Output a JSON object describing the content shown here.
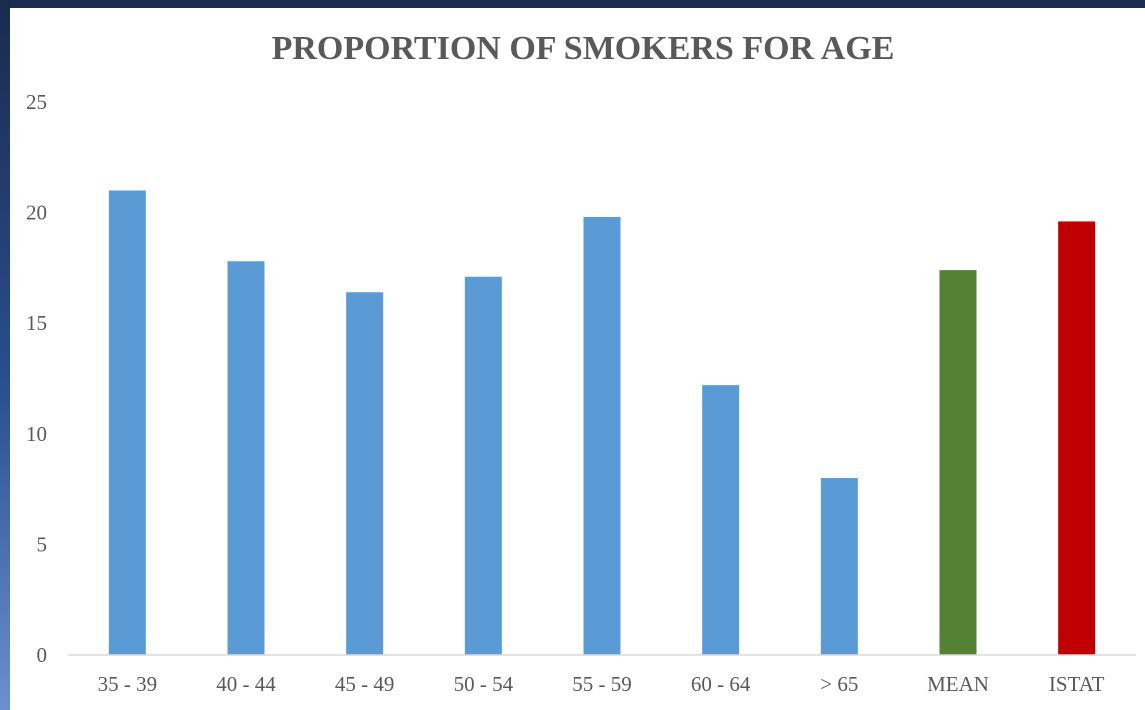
{
  "chart_data": {
    "type": "bar",
    "title": "PROPORTION OF SMOKERS FOR AGE",
    "xlabel": "",
    "ylabel": "",
    "categories": [
      "35 - 39",
      "40 - 44",
      "45 - 49",
      "50 - 54",
      "55 - 59",
      "60 - 64",
      "> 65",
      "MEAN",
      "ISTAT"
    ],
    "values": [
      21.0,
      17.8,
      16.4,
      17.1,
      19.8,
      12.2,
      8.0,
      17.4,
      19.6
    ],
    "bar_colors": [
      "#5b9bd5",
      "#5b9bd5",
      "#5b9bd5",
      "#5b9bd5",
      "#5b9bd5",
      "#5b9bd5",
      "#5b9bd5",
      "#548235",
      "#c00000"
    ],
    "ylim": [
      0,
      25
    ],
    "yticks": [
      "0",
      "5",
      "10",
      "15",
      "20",
      "25"
    ],
    "grid": false,
    "legend": "none"
  }
}
